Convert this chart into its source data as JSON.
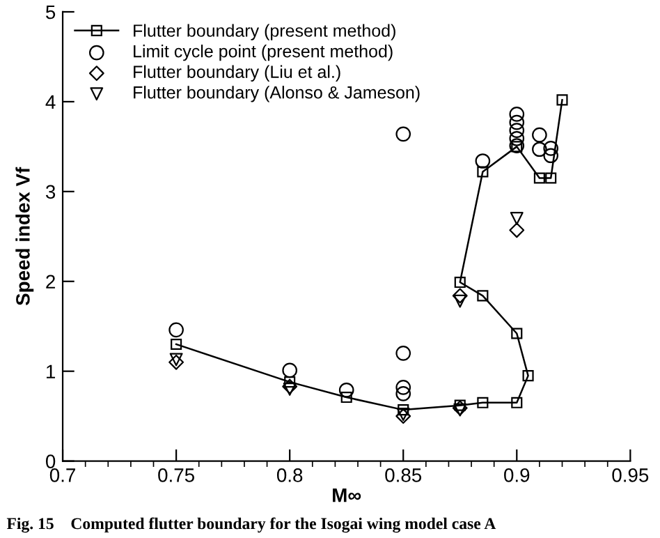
{
  "chart_data": {
    "type": "scatter",
    "xlabel": "M∞",
    "ylabel": "Speed index Vf",
    "xlim": [
      0.7,
      0.95
    ],
    "ylim": [
      0,
      5
    ],
    "xticks": [
      0.7,
      0.75,
      0.8,
      0.85,
      0.9,
      0.95
    ],
    "yticks": [
      0,
      1,
      2,
      3,
      4,
      5
    ],
    "grid": false,
    "legend": "top left",
    "annotations": [
      "Fig. 15    Computed flutter boundary for the Isogai wing model case A"
    ],
    "series": [
      {
        "name": "Flutter boundary (present method)",
        "type": "line",
        "marker": "square",
        "color": "#000000",
        "x": [
          0.75,
          0.8,
          0.825,
          0.85,
          0.875,
          0.885,
          0.9,
          0.905,
          0.9,
          0.885,
          0.875,
          0.885,
          0.9,
          0.91,
          0.915,
          0.92
        ],
        "values": [
          1.3,
          0.88,
          0.71,
          0.57,
          0.62,
          0.65,
          0.65,
          0.95,
          1.42,
          1.84,
          1.99,
          3.22,
          3.5,
          3.15,
          3.15,
          4.02
        ]
      },
      {
        "name": "Limit cycle point (present method)",
        "marker": "circle",
        "color": "#000000",
        "x": [
          0.75,
          0.8,
          0.825,
          0.85,
          0.85,
          0.85,
          0.85,
          0.885,
          0.9,
          0.9,
          0.9,
          0.9,
          0.9,
          0.91,
          0.91,
          0.915,
          0.915
        ],
        "values": [
          1.46,
          1.01,
          0.79,
          1.2,
          0.82,
          0.75,
          3.64,
          3.34,
          3.86,
          3.77,
          3.68,
          3.59,
          3.51,
          3.63,
          3.47,
          3.48,
          3.4
        ]
      },
      {
        "name": "Flutter boundary (Liu et al.)",
        "marker": "diamond",
        "color": "#000000",
        "x": [
          0.75,
          0.8,
          0.85,
          0.875,
          0.875,
          0.9
        ],
        "values": [
          1.1,
          0.83,
          0.5,
          1.84,
          0.59,
          2.57
        ]
      },
      {
        "name": "Flutter boundary (Alonso & Jameson)",
        "marker": "triangle",
        "color": "#000000",
        "x": [
          0.75,
          0.8,
          0.85,
          0.875,
          0.875,
          0.9
        ],
        "values": [
          1.13,
          0.8,
          0.52,
          1.78,
          0.57,
          2.7
        ]
      }
    ]
  }
}
